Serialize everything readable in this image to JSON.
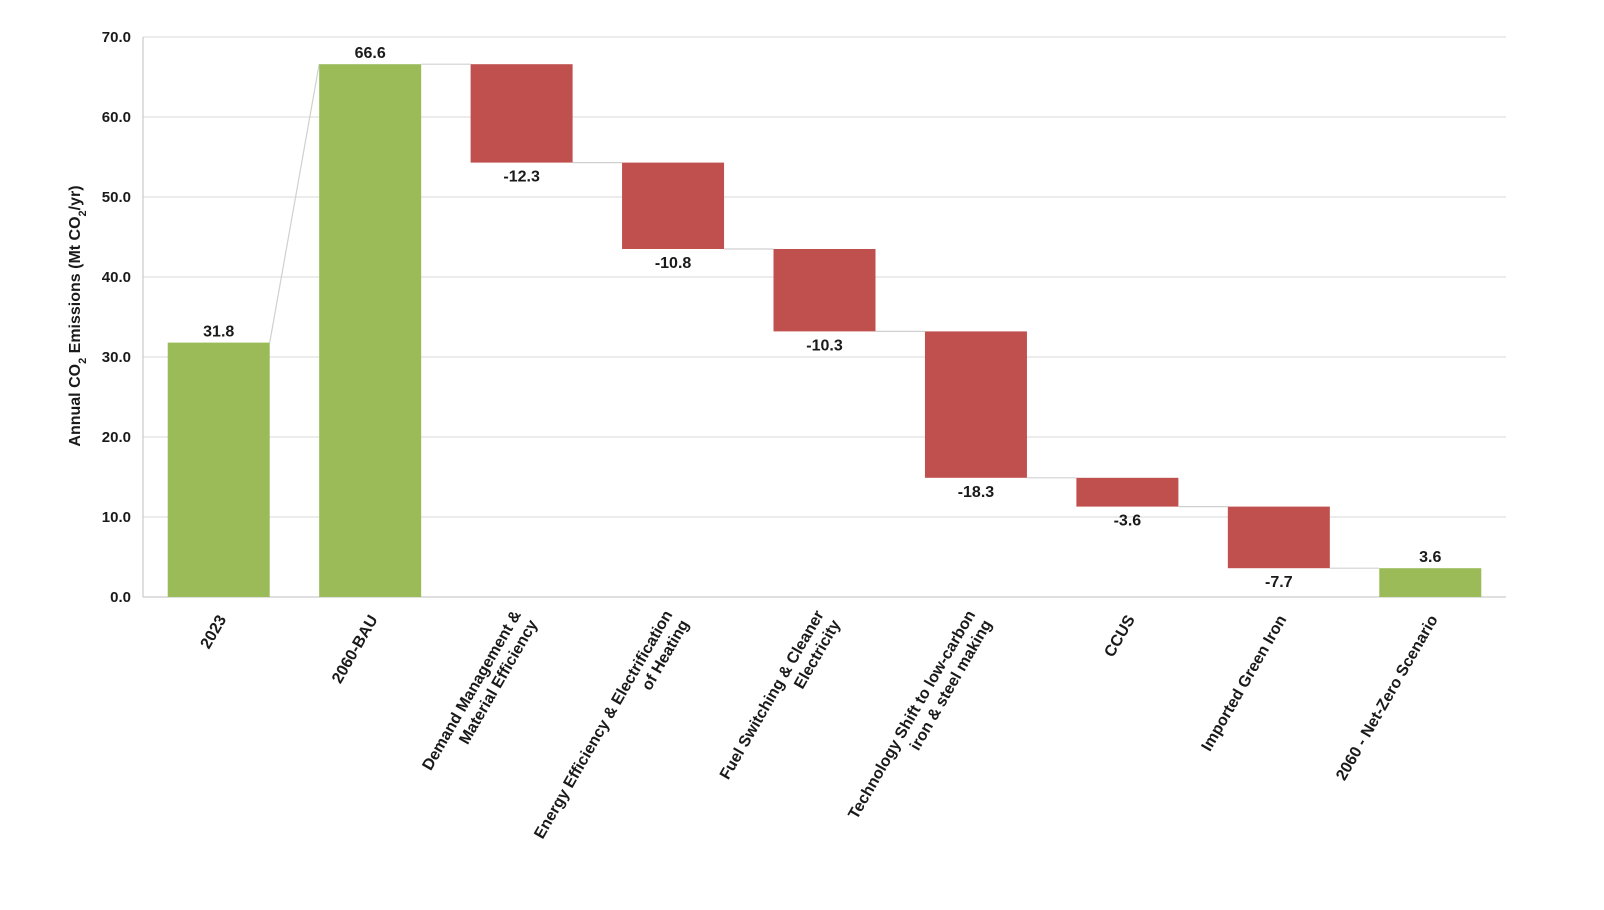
{
  "chart_data": {
    "type": "waterfall",
    "title": "",
    "ylabel": {
      "prefix": "Annual CO",
      "subscript": "2",
      "middle": "  Emissions (Mt CO",
      "subscript2": "2",
      "suffix": "/yr)"
    },
    "ylim": [
      0,
      70
    ],
    "yticks": [
      "0.0",
      "10.0",
      "20.0",
      "30.0",
      "40.0",
      "50.0",
      "60.0",
      "70.0"
    ],
    "grid": true,
    "categories": [
      [
        "2023"
      ],
      [
        "2060-BAU"
      ],
      [
        "Demand Management &",
        "Material Efficiency"
      ],
      [
        "Energy Efficiency & Electrification",
        "of Heating"
      ],
      [
        "Fuel Switching & Cleaner",
        "Electricity"
      ],
      [
        "Technology Shift to low-carbon",
        "iron & steel making"
      ],
      [
        "CCUS"
      ],
      [
        "Imported Green Iron"
      ],
      [
        "2060 - Net-Zero Scenario"
      ]
    ],
    "bars": [
      {
        "kind": "total",
        "start": 0,
        "end": 31.8,
        "label": "31.8"
      },
      {
        "kind": "total",
        "start": 0,
        "end": 66.6,
        "label": "66.6"
      },
      {
        "kind": "decrease",
        "start": 66.6,
        "end": 54.3,
        "label": "-12.3"
      },
      {
        "kind": "decrease",
        "start": 54.3,
        "end": 43.5,
        "label": "-10.8"
      },
      {
        "kind": "decrease",
        "start": 43.5,
        "end": 33.2,
        "label": "-10.3"
      },
      {
        "kind": "decrease",
        "start": 33.2,
        "end": 14.9,
        "label": "-18.3"
      },
      {
        "kind": "decrease",
        "start": 14.9,
        "end": 11.3,
        "label": "-3.6"
      },
      {
        "kind": "decrease",
        "start": 11.3,
        "end": 3.6,
        "label": "-7.7"
      },
      {
        "kind": "total",
        "start": 0,
        "end": 3.6,
        "label": "3.6"
      }
    ],
    "colors": {
      "total": "#9bbb59",
      "decrease": "#c0504d",
      "grid": "#d9d9d9",
      "connector": "#d0d0d0",
      "axis": "#bfbfbf"
    }
  }
}
